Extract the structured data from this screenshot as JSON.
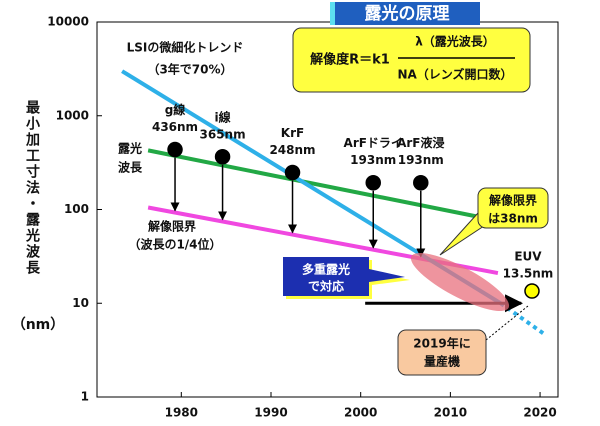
{
  "chart_data": {
    "type": "line",
    "log_y": true,
    "title": "露光の原理",
    "formula": {
      "lhs": "解像度R＝k1",
      "numerator": "λ（露光波長）",
      "denominator": "NA（レンズ開口数）"
    },
    "ylabel": "最小加工寸法・露光波長",
    "yunit": "（nm）",
    "xlim": [
      1970.6,
      2022
    ],
    "xticks": [
      1980,
      1990,
      2000,
      2010,
      2020
    ],
    "ylim": [
      1,
      10000
    ],
    "yticks": [
      1,
      10,
      100,
      1000,
      10000
    ],
    "series": [
      {
        "color": "#22a845",
        "x": [
          1976.3,
          2016.5
        ],
        "values": [
          427,
          72
        ]
      },
      {
        "color": "#f048e0",
        "x": [
          1976.3,
          2015.3
        ],
        "values": [
          105,
          21
        ]
      },
      {
        "color": "#2eb0e8",
        "x": [
          1973.4,
          2015.6
        ],
        "values": [
          2990,
          10
        ]
      },
      {
        "color": "#2eb0e8",
        "dashed": true,
        "x": [
          2015.6,
          2020.6
        ],
        "values": [
          10,
          4.6
        ]
      },
      {
        "color": "#000000",
        "arrow": true,
        "x": [
          2000.5,
          2017.9
        ],
        "values": [
          10,
          10
        ]
      }
    ],
    "points": {
      "labels": [
        "g線",
        "i線",
        "KrF",
        "ArFドライ",
        "ArF液浸",
        "EUV"
      ],
      "x": [
        1979.3,
        1984.6,
        1992.4,
        2001.4,
        2006.7,
        2019.1
      ],
      "values": [
        436,
        365,
        248,
        193,
        193,
        13.5
      ],
      "value_labels": [
        "436nm",
        "365nm",
        "248nm",
        "193nm",
        "193nm",
        "13.5nm"
      ],
      "colors": [
        "#000000",
        "#000000",
        "#000000",
        "#000000",
        "#000000",
        "#ffff00"
      ]
    },
    "annotations": {
      "trend": [
        "LSIの微細化トレンド",
        "（3年で70%）"
      ],
      "wavelength": [
        "露光",
        "波長"
      ],
      "limit": [
        "解像限界",
        "（波長の1/4位）"
      ],
      "limit_now": [
        "解像限界",
        "は38nm"
      ],
      "multi": [
        "多重露光",
        "で対応"
      ],
      "mass": [
        "2019年に",
        "量産機"
      ]
    }
  }
}
